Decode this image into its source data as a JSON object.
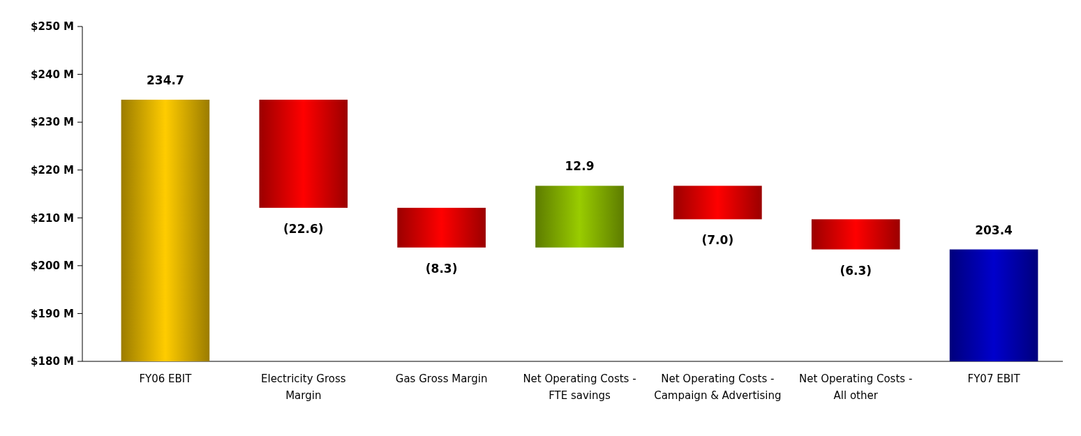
{
  "chart_data": {
    "type": "bar",
    "categories": [
      "FY06 EBIT",
      "Electricity Gross Margin",
      "Gas Gross Margin",
      "Net Operating Costs - FTE savings",
      "Net Operating Costs - Campaign & Advertising",
      "Net Operating Costs - All other",
      "FY07 EBIT"
    ],
    "base": [
      180,
      234.7,
      212.1,
      203.8,
      216.7,
      209.7,
      180
    ],
    "values": [
      54.7,
      -22.6,
      -8.3,
      12.9,
      -7.0,
      -6.3,
      23.4
    ],
    "value_labels": [
      "234.7",
      "(22.6)",
      "(8.3)",
      "12.9",
      "(7.0)",
      "(6.3)",
      "203.4"
    ],
    "colors": [
      "#ffcc00",
      "#ff0000",
      "#ff0000",
      "#99cc00",
      "#ff0000",
      "#ff0000",
      "#0000cc"
    ],
    "ylim": [
      180,
      250
    ],
    "yticks": [
      {
        "value": 180,
        "label": "$180 M"
      },
      {
        "value": 190,
        "label": "$190 M"
      },
      {
        "value": 200,
        "label": "$200 M"
      },
      {
        "value": 210,
        "label": "$210 M"
      },
      {
        "value": 220,
        "label": "$220 M"
      },
      {
        "value": 230,
        "label": "$230 M"
      },
      {
        "value": 240,
        "label": "$240 M"
      },
      {
        "value": 250,
        "label": "$250 M"
      }
    ],
    "grid": false
  }
}
